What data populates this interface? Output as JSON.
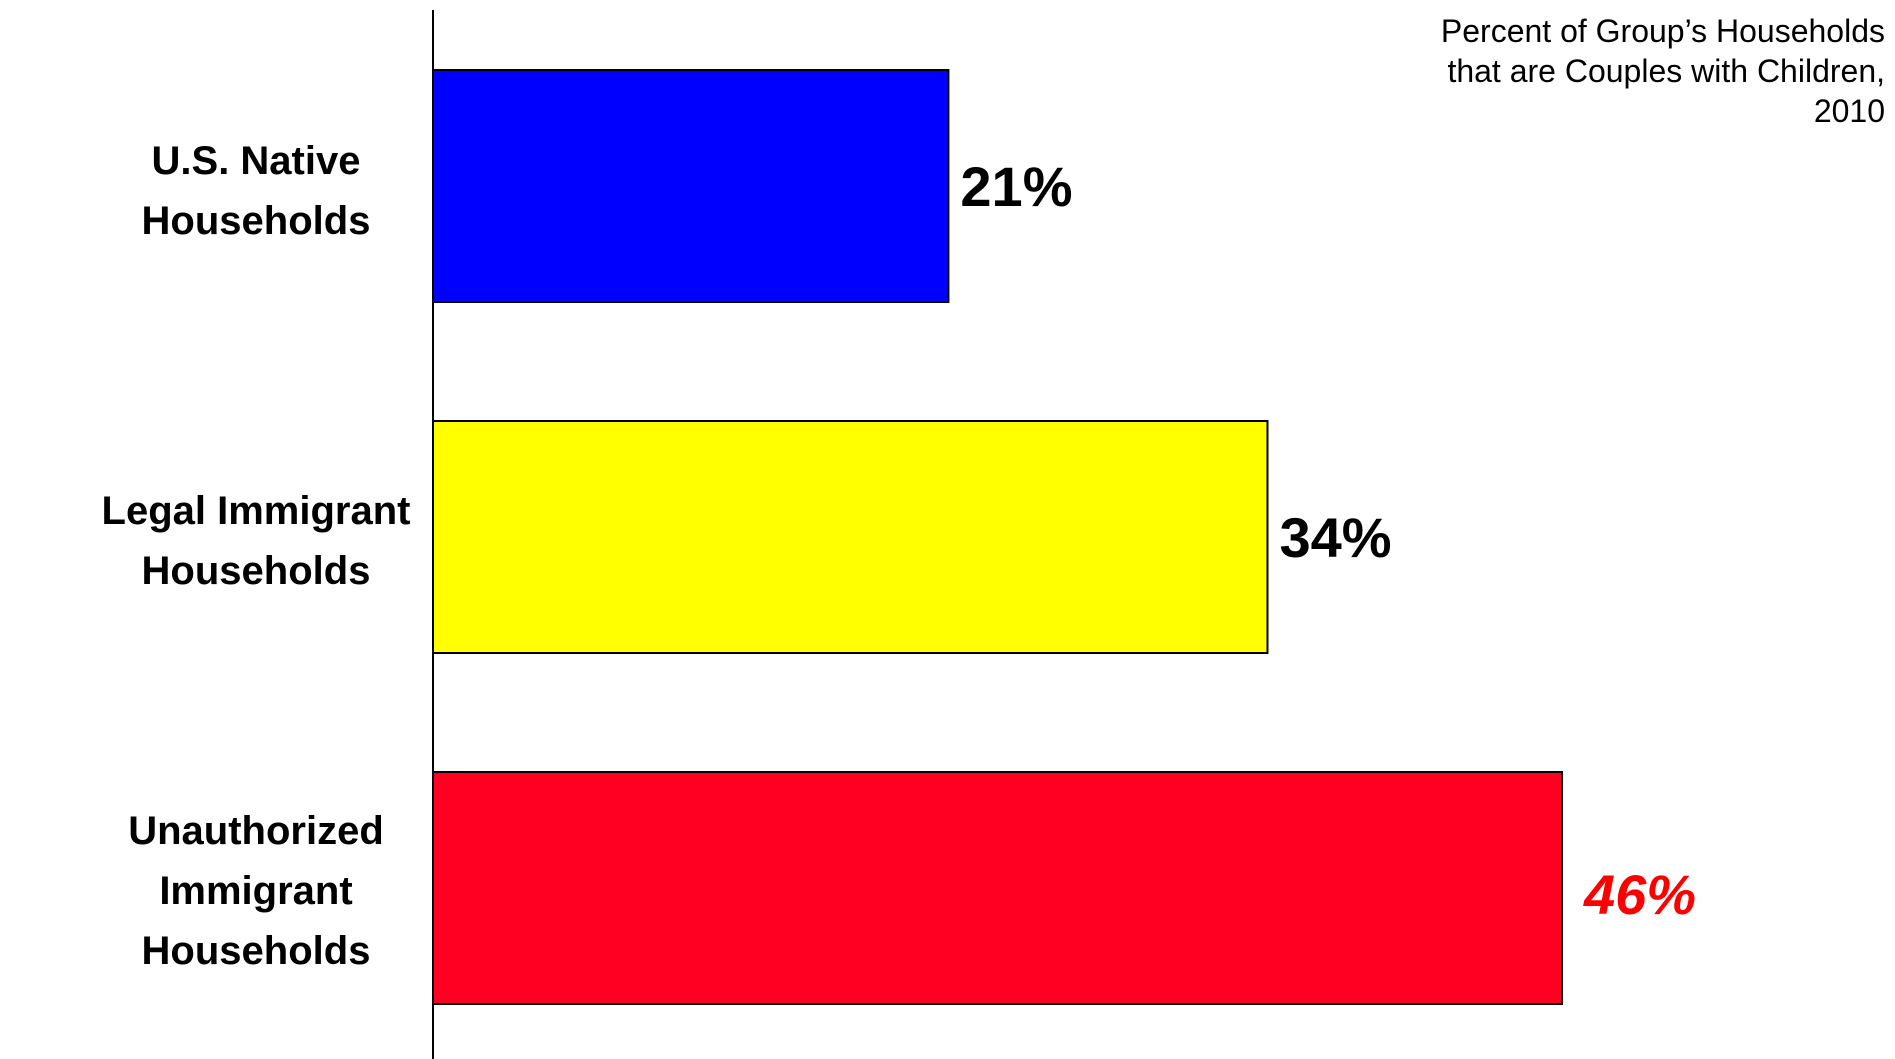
{
  "chart_data": {
    "type": "bar",
    "orientation": "horizontal",
    "title_lines": [
      "Percent of Group’s Households",
      "that are Couples with Children,",
      "2010"
    ],
    "categories": [
      [
        "U.S. Native",
        "Households"
      ],
      [
        "Legal Immigrant",
        "Households"
      ],
      [
        "Unauthorized",
        "Immigrant",
        "Households"
      ]
    ],
    "values": [
      21,
      34,
      46
    ],
    "value_labels": [
      "21%",
      "34%",
      "46%"
    ],
    "bar_colors": [
      "#0000ff",
      "#ffff00",
      "#ff0022"
    ],
    "value_label_colors": [
      "#000000",
      "#000000",
      "#ff0000"
    ],
    "value_label_italic": [
      false,
      false,
      true
    ],
    "xlim": [
      0,
      60
    ],
    "grid": false,
    "legend": "none"
  }
}
